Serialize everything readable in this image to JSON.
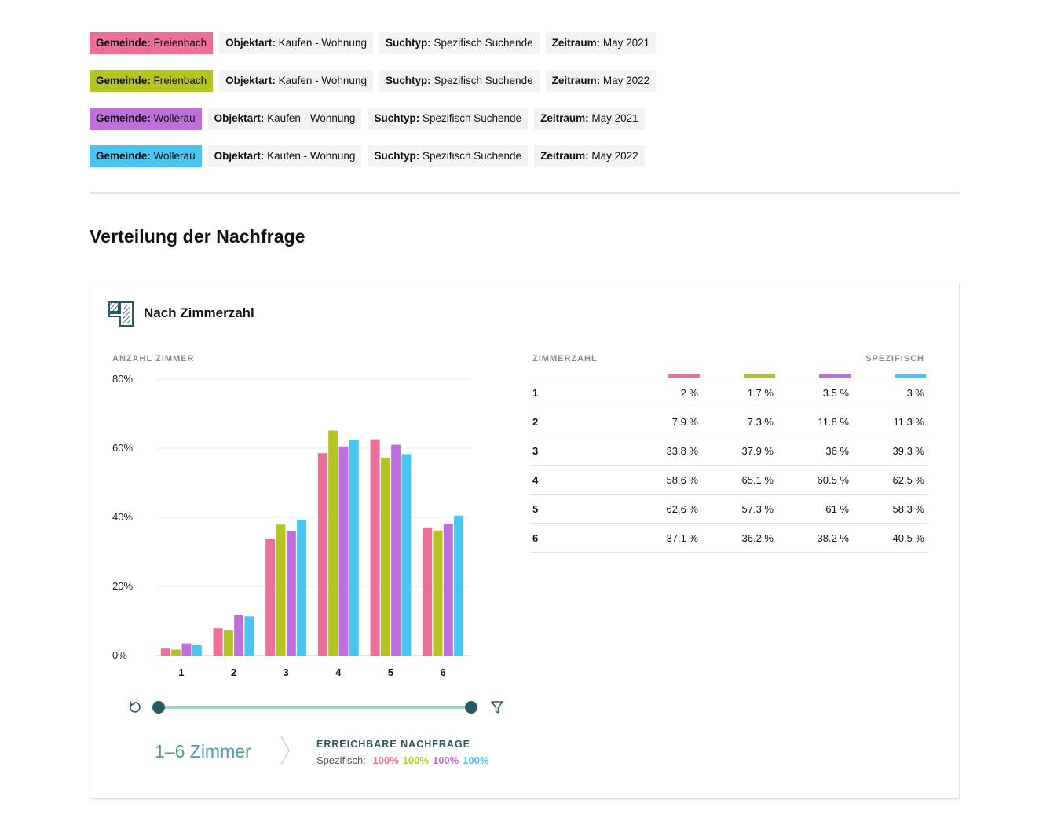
{
  "filters": [
    {
      "color": "#ec6f9b",
      "items": [
        {
          "key": "Gemeinde:",
          "value": "Freienbach"
        },
        {
          "key": "Objektart:",
          "value": "Kaufen - Wohnung"
        },
        {
          "key": "Suchtyp:",
          "value": "Spezifisch Suchende"
        },
        {
          "key": "Zeitraum:",
          "value": "May 2021"
        }
      ]
    },
    {
      "color": "#b3c424",
      "items": [
        {
          "key": "Gemeinde:",
          "value": "Freienbach"
        },
        {
          "key": "Objektart:",
          "value": "Kaufen - Wohnung"
        },
        {
          "key": "Suchtyp:",
          "value": "Spezifisch Suchende"
        },
        {
          "key": "Zeitraum:",
          "value": "May 2022"
        }
      ]
    },
    {
      "color": "#bf6fdb",
      "items": [
        {
          "key": "Gemeinde:",
          "value": "Wollerau"
        },
        {
          "key": "Objektart:",
          "value": "Kaufen - Wohnung"
        },
        {
          "key": "Suchtyp:",
          "value": "Spezifisch Suchende"
        },
        {
          "key": "Zeitraum:",
          "value": "May 2021"
        }
      ]
    },
    {
      "color": "#48c5f0",
      "items": [
        {
          "key": "Gemeinde:",
          "value": "Wollerau"
        },
        {
          "key": "Objektart:",
          "value": "Kaufen - Wohnung"
        },
        {
          "key": "Suchtyp:",
          "value": "Spezifisch Suchende"
        },
        {
          "key": "Zeitraum:",
          "value": "May 2022"
        }
      ]
    }
  ],
  "section": {
    "title": "Verteilung der Nachfrage"
  },
  "card": {
    "title": "Nach Zimmerzahl",
    "icon": "floorplan-icon"
  },
  "chart_data": {
    "type": "bar",
    "ylabel": "ANZAHL ZIMMER",
    "categories": [
      "1",
      "2",
      "3",
      "4",
      "5",
      "6"
    ],
    "ylim": [
      0,
      80
    ],
    "yticks": [
      0,
      20,
      40,
      60,
      80
    ],
    "ytick_labels": [
      "0%",
      "20%",
      "40%",
      "60%",
      "80%"
    ],
    "grid": true,
    "series": [
      {
        "color": "#ec6f9b",
        "values": [
          2,
          7.9,
          33.8,
          58.6,
          62.6,
          37.1
        ]
      },
      {
        "color": "#b3c424",
        "values": [
          1.7,
          7.3,
          37.9,
          65.1,
          57.3,
          36.2
        ]
      },
      {
        "color": "#bf6fdb",
        "values": [
          3.5,
          11.8,
          36,
          60.5,
          61,
          38.2
        ]
      },
      {
        "color": "#48c5f0",
        "values": [
          3,
          11.3,
          39.3,
          62.5,
          58.3,
          40.5
        ]
      }
    ]
  },
  "slider": {
    "min": 1,
    "max": 6,
    "low": 1,
    "high": 6,
    "reset_icon": "reset-icon",
    "filter_icon": "filter-icon"
  },
  "range_label": "1–6 Zimmer",
  "reach": {
    "title": "ERREICHBARE NACHFRAGE",
    "label": "Spezifisch:",
    "values": [
      {
        "text": "100%",
        "color": "#ec6f9b"
      },
      {
        "text": "100%",
        "color": "#b3c424"
      },
      {
        "text": "100%",
        "color": "#bf6fdb"
      },
      {
        "text": "100%",
        "color": "#48c5f0"
      }
    ]
  },
  "table": {
    "col_label": "ZIMMERZAHL",
    "value_label": "SPEZIFISCH",
    "rows": [
      {
        "label": "1",
        "cells": [
          "2 %",
          "1.7 %",
          "3.5 %",
          "3 %"
        ]
      },
      {
        "label": "2",
        "cells": [
          "7.9 %",
          "7.3 %",
          "11.8 %",
          "11.3 %"
        ]
      },
      {
        "label": "3",
        "cells": [
          "33.8 %",
          "37.9 %",
          "36 %",
          "39.3 %"
        ]
      },
      {
        "label": "4",
        "cells": [
          "58.6 %",
          "65.1 %",
          "60.5 %",
          "62.5 %"
        ]
      },
      {
        "label": "5",
        "cells": [
          "62.6 %",
          "57.3 %",
          "61 %",
          "58.3 %"
        ]
      },
      {
        "label": "6",
        "cells": [
          "37.1 %",
          "36.2 %",
          "38.2 %",
          "40.5 %"
        ]
      }
    ]
  }
}
